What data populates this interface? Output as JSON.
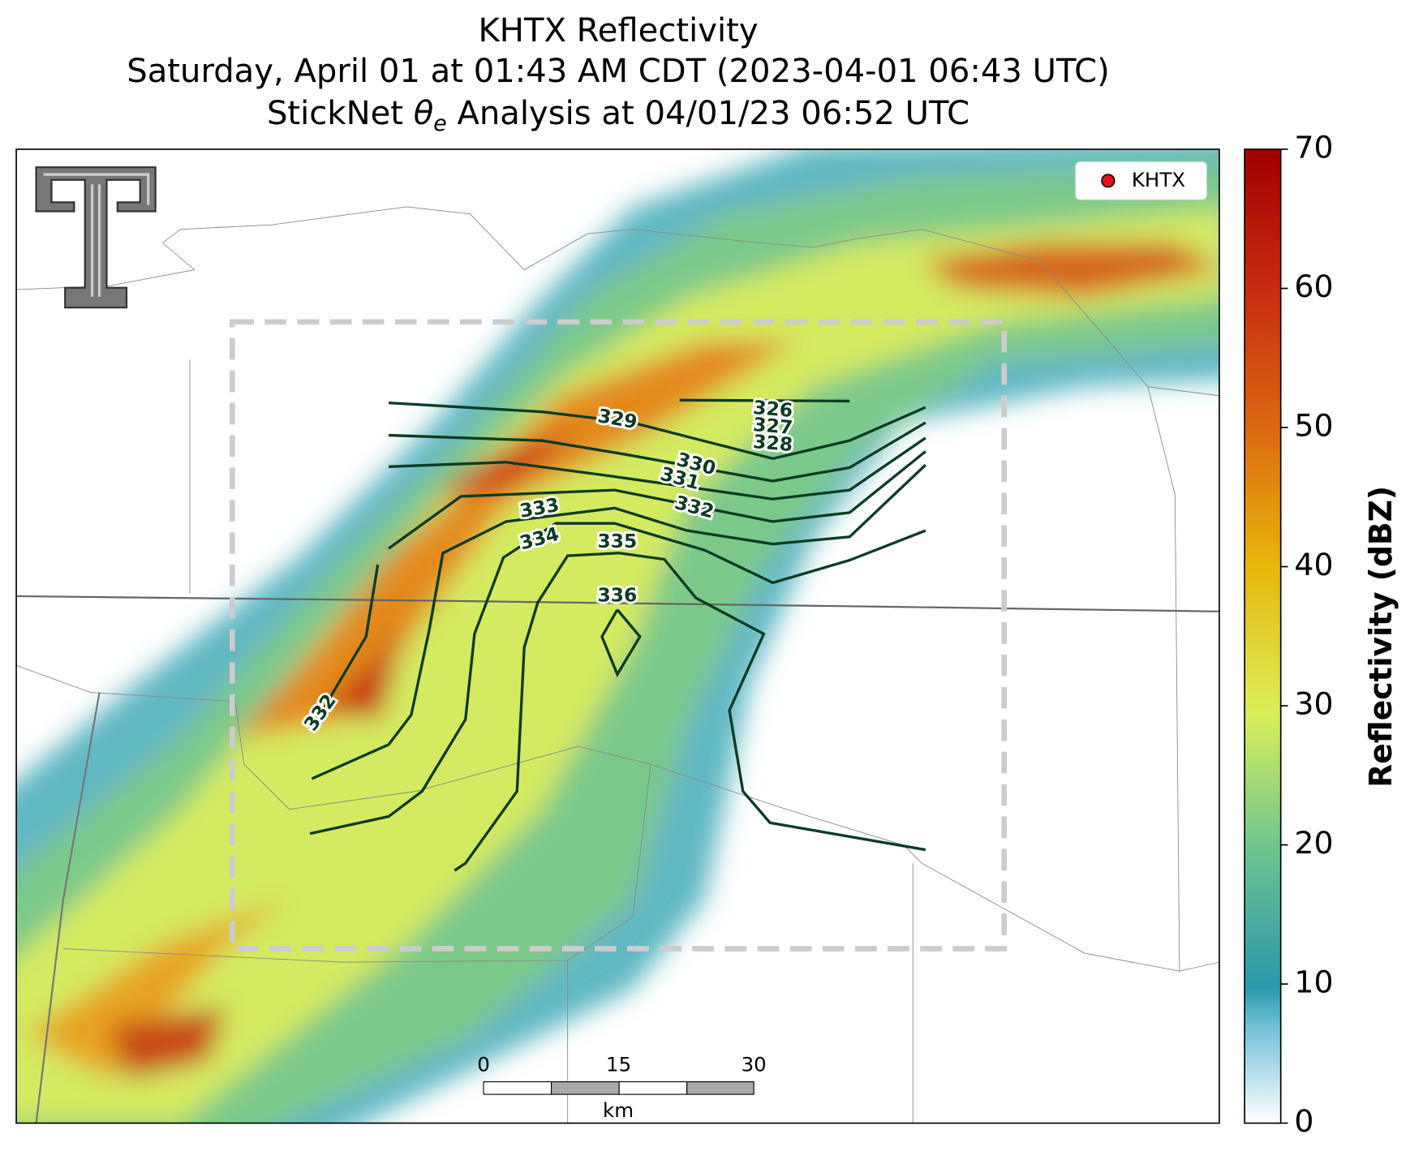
{
  "title": {
    "line1": "KHTX Reflectivity",
    "line2": "Saturday, April 01 at 01:43 AM CDT (2023-04-01 06:43 UTC)",
    "line3": [
      "StickNet ",
      "θ",
      "e",
      " Analysis at 04/01/23 06:52 UTC"
    ]
  },
  "legend": {
    "label": "KHTX",
    "color": "#e8121a"
  },
  "colorbar": {
    "label": "Reflectivity (dBZ)",
    "lim": [
      0,
      70
    ],
    "ticks": [
      0,
      10,
      20,
      30,
      40,
      50,
      60,
      70
    ]
  },
  "contour_labels": [
    326,
    327,
    328,
    329,
    330,
    331,
    332,
    333,
    334,
    335,
    336,
    332
  ],
  "scale_bar": {
    "ticks": [
      0,
      15,
      30
    ],
    "unit": "km"
  }
}
